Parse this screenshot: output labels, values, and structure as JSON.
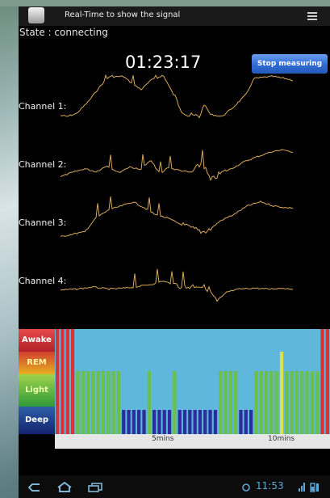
{
  "app": {
    "title": "Real-Time to show the signal"
  },
  "state": {
    "text": "State : connecting"
  },
  "timer": {
    "value": "01:23:17"
  },
  "controls": {
    "stop_label": "Stop  measuring"
  },
  "channels": [
    "Channel 1:",
    "Channel 2:",
    "Channel 3:",
    "Channel 4:"
  ],
  "hypnogram": {
    "stages": [
      "Awake",
      "REM",
      "Light",
      "Deep"
    ],
    "stage_colors": {
      "awake": "#d9323a",
      "rem": "#d8e44a",
      "light": "#6cc04a",
      "deep": "#2a2f9c"
    },
    "axis_ticks": [
      "5mins",
      "10mins"
    ]
  },
  "colors": {
    "signal": "#d8a85a",
    "button": "#2f6bd6",
    "hypnogram_bg": "#5fb7dc"
  },
  "status_bar": {
    "time": "11:53"
  }
}
